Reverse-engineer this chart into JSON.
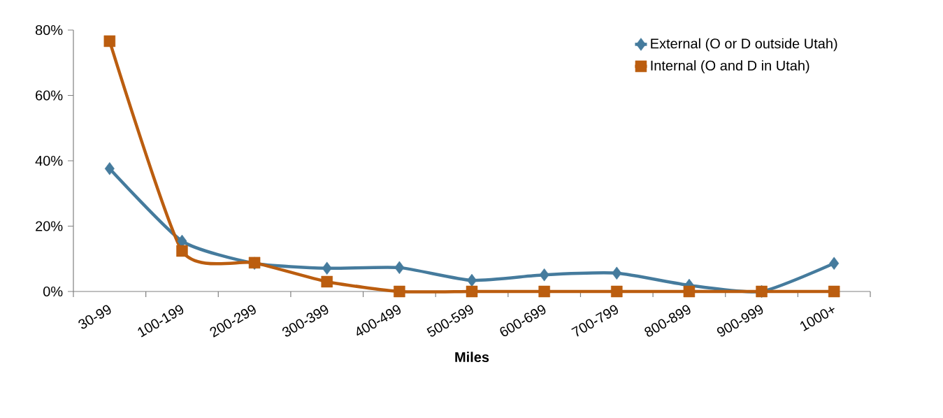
{
  "chart_data": {
    "type": "line",
    "xlabel": "Miles",
    "categories": [
      "30-99",
      "100-199",
      "200-299",
      "300-399",
      "400-499",
      "500-599",
      "600-699",
      "700-799",
      "800-899",
      "900-999",
      "1000+"
    ],
    "series": [
      {
        "name": "External (O or D outside Utah)",
        "color": "#457b9d",
        "marker": "diamond",
        "values": [
          37.6,
          15.4,
          8.6,
          7.1,
          7.3,
          3.4,
          5.1,
          5.6,
          1.9,
          0,
          8.6
        ]
      },
      {
        "name": "Internal (O and D in Utah)",
        "color": "#bb5d0f",
        "marker": "square",
        "values": [
          76.6,
          12.4,
          8.8,
          3.0,
          0,
          0,
          0,
          0,
          0,
          0,
          0
        ]
      }
    ],
    "ylim": [
      0,
      80
    ],
    "yticks": [
      {
        "value": 0,
        "label": "0%"
      },
      {
        "value": 20,
        "label": "20%"
      },
      {
        "value": 40,
        "label": "40%"
      },
      {
        "value": 60,
        "label": "60%"
      },
      {
        "value": 80,
        "label": "80%"
      }
    ],
    "grid": false,
    "legend": "top right"
  }
}
